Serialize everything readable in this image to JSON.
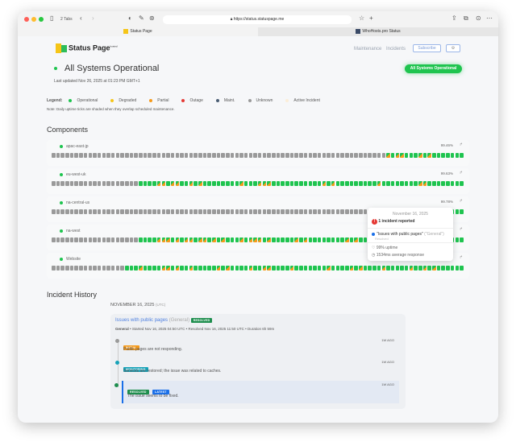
{
  "browser": {
    "tabs_count": "2 Tabs",
    "url": "https://status.statuspage.me",
    "tabs": [
      {
        "label": "Status Page"
      },
      {
        "label": "WhoHosts.pro Status"
      }
    ]
  },
  "header": {
    "logo_text": "Status Page",
    "logo_sub": "hosted",
    "nav": [
      "Maintenance",
      "Incidents"
    ],
    "subscribe": "Subscribe",
    "settings_icon": "gear-icon"
  },
  "status": {
    "title": "All Systems Operational",
    "last_updated": "Last updated Nov 26, 2025 at 01:23 PM GMT+1",
    "badge": "All Systems Operational"
  },
  "legend": {
    "label": "Legend:",
    "items": [
      {
        "label": "Operational",
        "color": "#1fc44f"
      },
      {
        "label": "Degraded",
        "color": "#f5c518"
      },
      {
        "label": "Partial",
        "color": "#f59a1b"
      },
      {
        "label": "Outage",
        "color": "#e53935"
      },
      {
        "label": "Maint.",
        "color": "#4a5d73"
      },
      {
        "label": "Unknown",
        "color": "#9a9a9a"
      },
      {
        "label": "Active Incident",
        "color": "#fbeed9"
      }
    ],
    "note": "Note: Daily uptime ticks are shaded when they overlap scheduled maintenance."
  },
  "components": {
    "title": "Components",
    "items": [
      {
        "name": "apac-east-jp",
        "uptime": "99.46%",
        "ticks": "uuuuuuuuuuuuuuuuuuuuuuuuuuuuuuuuuuuuuuuuuuuuuuuuuuuuuuuuuuuuuuuuuuuuuuuuuxoxxoooxoxoooooooo"
      },
      {
        "name": "eu-west-uk",
        "uptime": "99.63%",
        "ticks": "uuuuuuuuuuuuuuuuuuuooooxxoxxooxoxooooooooxoooxxxoooooooooooxoxoooooooooxooooooooxxoooooo"
      },
      {
        "name": "na-central-us",
        "uptime": "99.78%",
        "ticks": "uuuuuuuuuuuuuuuuuuuuuuuuuuuuuuuuuuuuuuuuuuuuuuuuuuuuuuuuuuuuuuuuuuuuuuuuuuuuuuuuuuuuuuoooo"
      },
      {
        "name": "na-west",
        "uptime": "",
        "ticks": "uuuuuuuuuuuuuuuuuuuooooxxxoxoxxoxxoxoxoooxoxxxoxoooooxoxooooooooxoxoooooooxooxooxoooooooo"
      },
      {
        "name": "Website",
        "uptime": "",
        "ticks": "uuuuuuuuuuuuuuuuoooxooooxxoxooxoooooxoxooooxooxxooooxoooooooxooooxoxooooxoooooxooxoxooooooo"
      }
    ]
  },
  "tooltip": {
    "date": "November 16, 2025",
    "incidents": "1 incident reported",
    "incident_name": "\"Issues with public pages\"",
    "incident_scope": "(\"General\")",
    "incident_state": "Resolved",
    "uptime": "99% uptime",
    "response": "1534ms average response"
  },
  "history": {
    "title": "Incident History",
    "date": "NOVEMBER 16, 2025",
    "tz": "(UTC)",
    "incident": {
      "title": "Issues with public pages",
      "scope": "(General)",
      "badge": "RESOLVED",
      "meta_bold": "General",
      "meta": " • Started Nov 16, 2025 04:50 UTC • Resolved Nov 16, 2025 11:50 UTC • Duration 6h 59m",
      "updates": [
        {
          "badge": "INITIAL",
          "text": "Public pages are not responding.",
          "ago": "1W AGO",
          "color": "#f59a1b",
          "dot": "#9a9a9a"
        },
        {
          "badge": "MONITORING",
          "text": "Services are restored; the issue was related to caches.",
          "ago": "1W AGO",
          "color": "#17a2b8",
          "dot": "#17a2b8"
        },
        {
          "badge": "RESOLVED",
          "badge2": "LATEST",
          "text": "The issue seems to be fixed.",
          "ago": "1W AGO",
          "color": "#1e8e4e",
          "dot": "#1e8e4e"
        }
      ]
    }
  }
}
